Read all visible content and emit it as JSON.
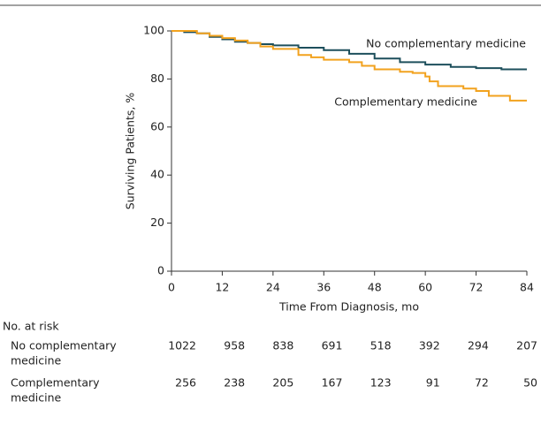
{
  "chart_data": {
    "type": "line",
    "step": true,
    "ylabel": "Surviving Patients, %",
    "xlabel": "Time From Diagnosis, mo",
    "xlim": [
      0,
      84
    ],
    "xticks": [
      0,
      12,
      24,
      36,
      48,
      60,
      72,
      84
    ],
    "ylim": [
      0,
      100
    ],
    "yticks": [
      0,
      20,
      40,
      60,
      80,
      100
    ],
    "grid": false,
    "series": [
      {
        "name": "No complementary medicine",
        "color": "#1d4f5c",
        "x": [
          0,
          3,
          6,
          9,
          12,
          15,
          18,
          21,
          24,
          30,
          36,
          42,
          48,
          54,
          60,
          66,
          72,
          78,
          84
        ],
        "values": [
          100,
          99.5,
          99,
          97.5,
          96.5,
          95.5,
          95,
          94.5,
          94,
          93,
          92,
          90.5,
          88.5,
          87,
          86,
          85,
          84.5,
          84,
          84
        ]
      },
      {
        "name": "Complementary medicine",
        "color": "#f2a21e",
        "x": [
          0,
          6,
          9,
          12,
          15,
          18,
          21,
          24,
          30,
          33,
          36,
          42,
          45,
          48,
          54,
          57,
          60,
          61,
          63,
          69,
          72,
          75,
          80,
          84
        ],
        "values": [
          100,
          99,
          98,
          97,
          96,
          95,
          93.5,
          92.5,
          90,
          89,
          88,
          87,
          85.5,
          84,
          83,
          82.5,
          81,
          79,
          77,
          76,
          75,
          73,
          71,
          71
        ]
      }
    ],
    "risk_table": {
      "title": "No. at risk",
      "rows": [
        {
          "label": [
            "No complementary",
            "medicine"
          ],
          "values": [
            1022,
            958,
            838,
            691,
            518,
            392,
            294,
            207
          ]
        },
        {
          "label": [
            "Complementary",
            "medicine"
          ],
          "values": [
            256,
            238,
            205,
            167,
            123,
            91,
            72,
            50
          ]
        }
      ]
    }
  }
}
